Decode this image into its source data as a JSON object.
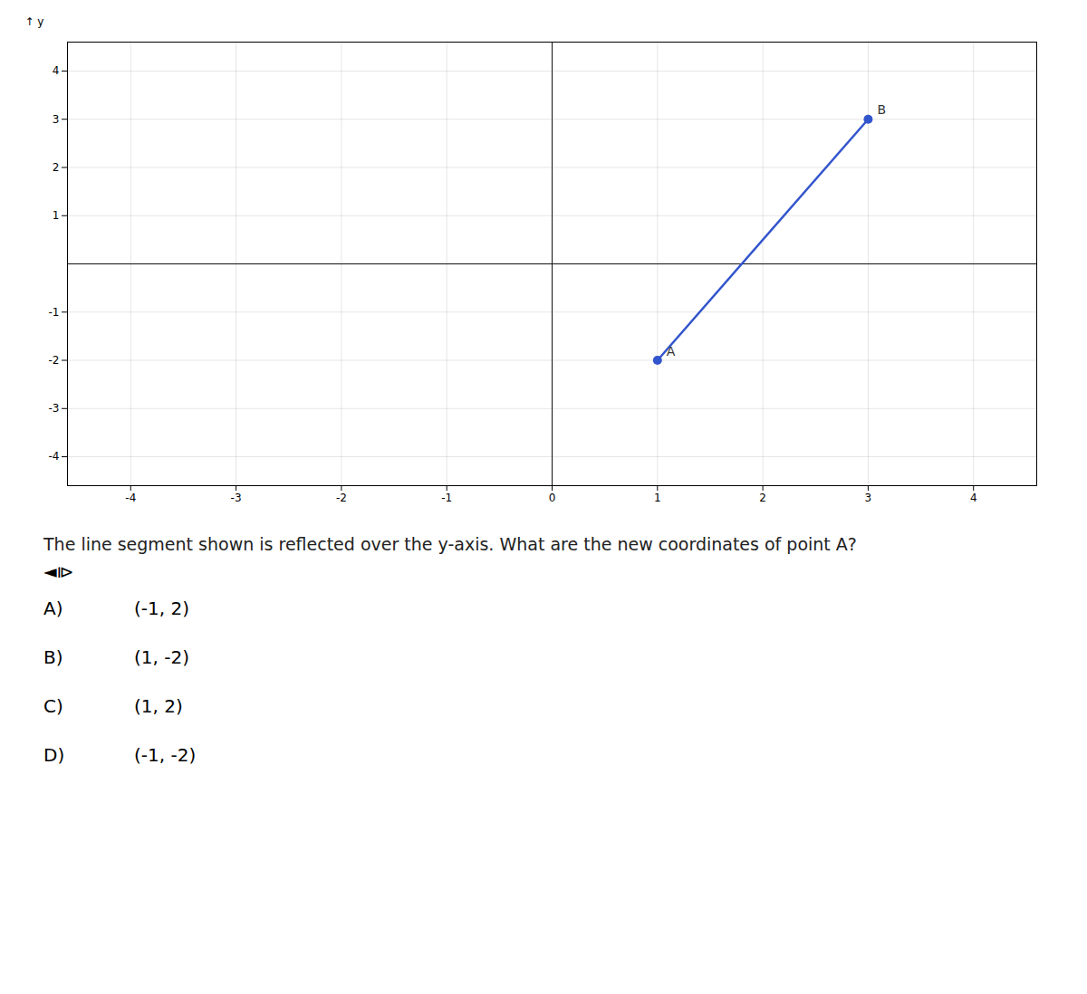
{
  "chart_data": {
    "type": "line",
    "x": [
      1,
      3
    ],
    "values": [
      -2,
      3
    ],
    "color": "#3355cc",
    "marker": "circle",
    "xlim": [
      -4.6,
      4.6
    ],
    "ylim": [
      -4.6,
      4.6
    ],
    "xticks": [
      -4,
      -3,
      -2,
      -1,
      0,
      1,
      2,
      3,
      4
    ],
    "yticks": [
      -4,
      -3,
      -2,
      -1,
      1,
      2,
      3,
      4
    ],
    "ylabel": "y",
    "grid": true,
    "annotations": [
      {
        "text": "A",
        "x": 1,
        "y": -2
      },
      {
        "text": "B",
        "x": 3,
        "y": 3
      }
    ],
    "question": "The line segment shown is reflected over the y-axis. What are the new coordinates of point A?",
    "icon": "◄⧐",
    "answers": [
      {
        "label": "A)",
        "text": "(-1, 2)"
      },
      {
        "label": "B)",
        "text": "(1, -2)"
      },
      {
        "label": "C)",
        "text": "(1, 2)"
      },
      {
        "label": "D)",
        "text": "(-1, -2)"
      }
    ]
  }
}
